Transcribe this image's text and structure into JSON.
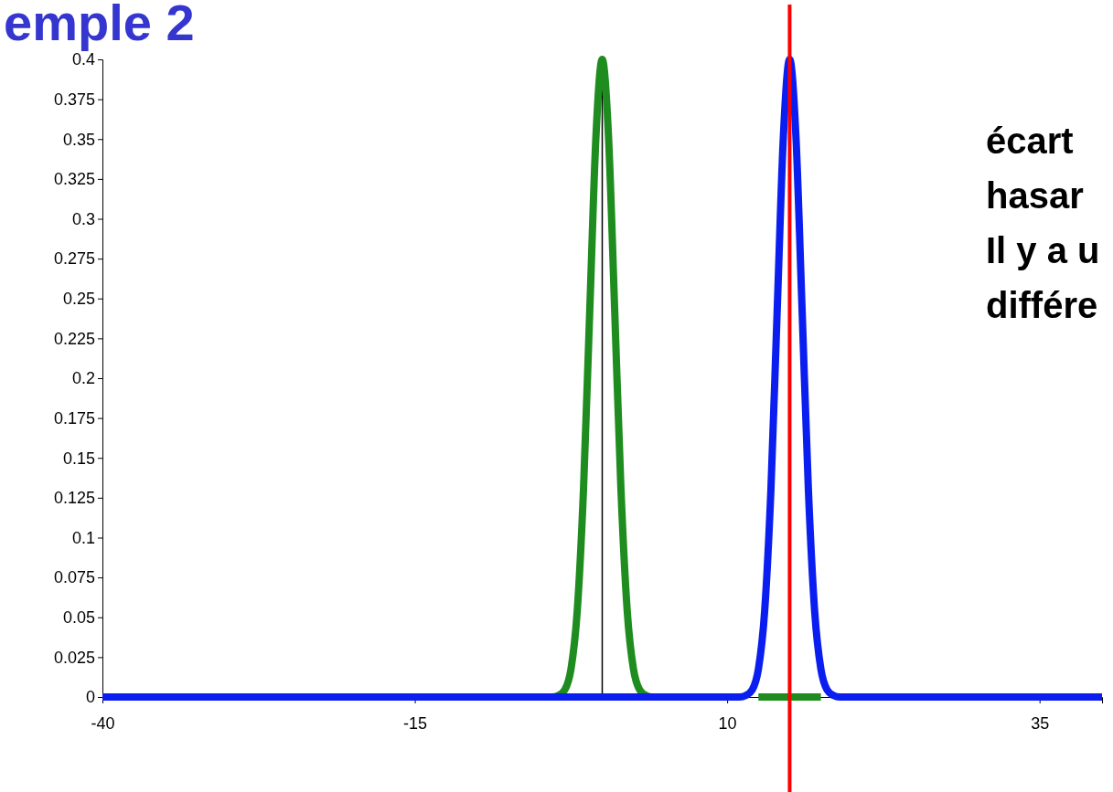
{
  "chart_data": {
    "type": "line",
    "title": "emple 2",
    "annotations": [
      "écart",
      "hasar",
      "Il y a u",
      "différe"
    ],
    "series": [
      {
        "color": "#1e8c1e",
        "x": [
          -4.5,
          -4,
          -3.5,
          -3,
          -2.5,
          -2,
          -1.5,
          -1,
          -0.5,
          0,
          0.5,
          1,
          1.5,
          2,
          2.5,
          3,
          3.5,
          4,
          4.5,
          8,
          12.5,
          17.5
        ],
        "values": [
          0,
          0,
          0.001,
          0.0044,
          0.0175,
          0.054,
          0.13,
          0.242,
          0.352,
          0.4,
          0.352,
          0.242,
          0.13,
          0.054,
          0.0175,
          0.0044,
          0.001,
          0,
          0,
          null,
          0,
          0
        ]
      },
      {
        "color": "#0a1ef0",
        "x": [
          -40,
          5,
          10.5,
          11,
          11.5,
          12,
          12.5,
          13,
          13.5,
          14,
          14.5,
          15,
          15.5,
          16,
          16.5,
          17,
          17.5,
          18,
          18.5,
          19,
          19.5,
          25,
          40
        ],
        "values": [
          0,
          0,
          0,
          0,
          0.001,
          0.0044,
          0.0175,
          0.054,
          0.13,
          0.242,
          0.352,
          0.4,
          0.352,
          0.242,
          0.13,
          0.054,
          0.0175,
          0.0044,
          0.001,
          0,
          0,
          0,
          0
        ]
      }
    ],
    "xlim": [
      -40,
      40
    ],
    "xticks": [
      -40,
      -15,
      10,
      35
    ],
    "ylim": [
      0,
      0.4
    ],
    "yticks": [
      0,
      0.025,
      0.05,
      0.075,
      0.1,
      0.125,
      0.15,
      0.175,
      0.2,
      0.225,
      0.25,
      0.275,
      0.3,
      0.325,
      0.35,
      0.375,
      0.4
    ],
    "ref_lines": [
      {
        "axis": "x",
        "value": 0,
        "color": "#000000"
      },
      {
        "axis": "x",
        "value": 15,
        "color": "#ff0000"
      }
    ],
    "grid": false
  }
}
